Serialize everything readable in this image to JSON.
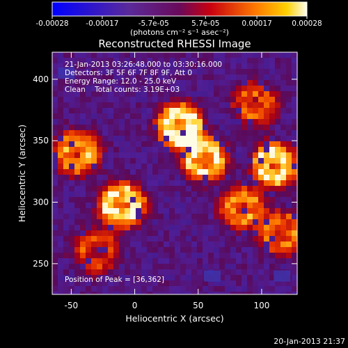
{
  "colorbar": {
    "tick_labels": [
      "-0.00028",
      "-0.00017",
      "-5.7e-05",
      "5.7e-05",
      "0.00017",
      "0.00028"
    ],
    "tick_values": [
      -0.00028,
      -0.00017,
      -5.7e-05,
      5.7e-05,
      0.00017,
      0.00028
    ],
    "range": [
      -0.00028,
      0.00028
    ],
    "units_label": "(photons cm⁻² s⁻¹ asec⁻²)",
    "colormap": "blue-purple-red-orange-yellow-white"
  },
  "chart_data": {
    "type": "heatmap",
    "title": "Reconstructed RHESSI Image",
    "xlabel": "Heliocentric X (arcsec)",
    "ylabel": "Heliocentric Y (arcsec)",
    "xlim": [
      -65,
      128
    ],
    "ylim": [
      225,
      422
    ],
    "x_ticks": [
      -50,
      0,
      50,
      100
    ],
    "y_ticks": [
      250,
      300,
      350,
      400
    ],
    "annotations": [
      "21-Jan-2013 03:26:48.000 to 03:30:16.000",
      "Detectors: 3F 5F 6F 7F 8F 9F, Att 0",
      "Energy Range: 12.0 - 25.0 keV",
      "Clean    Total counts: 3.19E+03"
    ],
    "peak_label": "Position of Peak = [36,362]",
    "peak": [
      36,
      362
    ],
    "bright_regions": [
      {
        "x": 36,
        "y": 362,
        "level": 1.0
      },
      {
        "x": 55,
        "y": 335,
        "level": 0.85
      },
      {
        "x": -10,
        "y": 298,
        "level": 0.9
      },
      {
        "x": 110,
        "y": 330,
        "level": 0.85
      },
      {
        "x": -45,
        "y": 340,
        "level": 0.7
      },
      {
        "x": 85,
        "y": 295,
        "level": 0.6
      },
      {
        "x": 115,
        "y": 275,
        "level": 0.55
      },
      {
        "x": 95,
        "y": 380,
        "level": 0.5
      },
      {
        "x": -30,
        "y": 260,
        "level": 0.45
      }
    ]
  },
  "footer": {
    "timestamp": "20-Jan-2013 21:37"
  }
}
